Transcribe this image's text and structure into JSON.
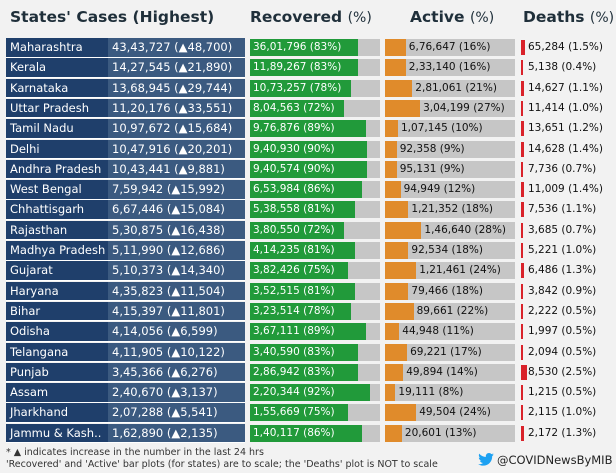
{
  "headers": {
    "states_cases": "States' Cases (Highest)",
    "recovered": "Recovered",
    "recovered_unit": "(%)",
    "active": "Active",
    "active_unit": "(%)",
    "deaths": "Deaths",
    "deaths_unit": "(%)"
  },
  "colors": {
    "state_bg": "#1f3f6b",
    "cases_bg": "#3b5a80",
    "recovered": "#219a3a",
    "active": "#e08b2b",
    "deaths": "#d9222a",
    "track": "#c6c6c6"
  },
  "chart_data": {
    "type": "table",
    "title": "States' Cases (Highest)",
    "columns": [
      "State",
      "Cases",
      "Recovered (%)",
      "Active (%)",
      "Deaths (%)"
    ],
    "rows": [
      {
        "state": "Maharashtra",
        "cases": "43,43,727 (▲48,700)",
        "recovered": "36,01,796 (83%)",
        "recovered_pct": 83,
        "active": "6,76,647 (16%)",
        "active_pct": 16,
        "deaths": "65,284 (1.5%)"
      },
      {
        "state": "Kerala",
        "cases": "14,27,545 (▲21,890)",
        "recovered": "11,89,267 (83%)",
        "recovered_pct": 83,
        "active": "2,33,140 (16%)",
        "active_pct": 16,
        "deaths": "5,138 (0.4%)"
      },
      {
        "state": "Karnataka",
        "cases": "13,68,945 (▲29,744)",
        "recovered": "10,73,257 (78%)",
        "recovered_pct": 78,
        "active": "2,81,061 (21%)",
        "active_pct": 21,
        "deaths": "14,627 (1.1%)"
      },
      {
        "state": "Uttar Pradesh",
        "cases": "11,20,176 (▲33,551)",
        "recovered": "8,04,563 (72%)",
        "recovered_pct": 72,
        "active": "3,04,199 (27%)",
        "active_pct": 27,
        "deaths": "11,414 (1.0%)"
      },
      {
        "state": "Tamil Nadu",
        "cases": "10,97,672 (▲15,684)",
        "recovered": "9,76,876 (89%)",
        "recovered_pct": 89,
        "active": "1,07,145 (10%)",
        "active_pct": 10,
        "deaths": "13,651 (1.2%)"
      },
      {
        "state": "Delhi",
        "cases": "10,47,916 (▲20,201)",
        "recovered": "9,40,930 (90%)",
        "recovered_pct": 90,
        "active": "92,358 (9%)",
        "active_pct": 9,
        "deaths": "14,628 (1.4%)"
      },
      {
        "state": "Andhra Pradesh",
        "cases": "10,43,441 (▲9,881)",
        "recovered": "9,40,574 (90%)",
        "recovered_pct": 90,
        "active": "95,131 (9%)",
        "active_pct": 9,
        "deaths": "7,736 (0.7%)"
      },
      {
        "state": "West Bengal",
        "cases": "7,59,942 (▲15,992)",
        "recovered": "6,53,984 (86%)",
        "recovered_pct": 86,
        "active": "94,949 (12%)",
        "active_pct": 12,
        "deaths": "11,009 (1.4%)"
      },
      {
        "state": "Chhattisgarh",
        "cases": "6,67,446 (▲15,084)",
        "recovered": "5,38,558 (81%)",
        "recovered_pct": 81,
        "active": "1,21,352 (18%)",
        "active_pct": 18,
        "deaths": "7,536 (1.1%)"
      },
      {
        "state": "Rajasthan",
        "cases": "5,30,875 (▲16,438)",
        "recovered": "3,80,550 (72%)",
        "recovered_pct": 72,
        "active": "1,46,640 (28%)",
        "active_pct": 28,
        "deaths": "3,685 (0.7%)"
      },
      {
        "state": "Madhya Pradesh",
        "cases": "5,11,990 (▲12,686)",
        "recovered": "4,14,235 (81%)",
        "recovered_pct": 81,
        "active": "92,534 (18%)",
        "active_pct": 18,
        "deaths": "5,221 (1.0%)"
      },
      {
        "state": "Gujarat",
        "cases": "5,10,373 (▲14,340)",
        "recovered": "3,82,426 (75%)",
        "recovered_pct": 75,
        "active": "1,21,461 (24%)",
        "active_pct": 24,
        "deaths": "6,486 (1.3%)"
      },
      {
        "state": "Haryana",
        "cases": "4,35,823 (▲11,504)",
        "recovered": "3,52,515 (81%)",
        "recovered_pct": 81,
        "active": "79,466 (18%)",
        "active_pct": 18,
        "deaths": "3,842 (0.9%)"
      },
      {
        "state": "Bihar",
        "cases": "4,15,397 (▲11,801)",
        "recovered": "3,23,514 (78%)",
        "recovered_pct": 78,
        "active": "89,661 (22%)",
        "active_pct": 22,
        "deaths": "2,222 (0.5%)"
      },
      {
        "state": "Odisha",
        "cases": "4,14,056 (▲6,599)",
        "recovered": "3,67,111 (89%)",
        "recovered_pct": 89,
        "active": "44,948 (11%)",
        "active_pct": 11,
        "deaths": "1,997 (0.5%)"
      },
      {
        "state": "Telangana",
        "cases": "4,11,905 (▲10,122)",
        "recovered": "3,40,590 (83%)",
        "recovered_pct": 83,
        "active": "69,221 (17%)",
        "active_pct": 17,
        "deaths": "2,094 (0.5%)"
      },
      {
        "state": "Punjab",
        "cases": "3,45,366 (▲6,276)",
        "recovered": "2,86,942 (83%)",
        "recovered_pct": 83,
        "active": "49,894 (14%)",
        "active_pct": 14,
        "deaths": "8,530 (2.5%)"
      },
      {
        "state": "Assam",
        "cases": "2,40,670 (▲3,137)",
        "recovered": "2,20,344 (92%)",
        "recovered_pct": 92,
        "active": "19,111 (8%)",
        "active_pct": 8,
        "deaths": "1,215 (0.5%)"
      },
      {
        "state": "Jharkhand",
        "cases": "2,07,288 (▲5,541)",
        "recovered": "1,55,669 (75%)",
        "recovered_pct": 75,
        "active": "49,504 (24%)",
        "active_pct": 24,
        "deaths": "2,115 (1.0%)"
      },
      {
        "state": "Jammu & Kash..",
        "cases": "1,62,890 (▲2,135)",
        "recovered": "1,40,117 (86%)",
        "recovered_pct": 86,
        "active": "20,601 (13%)",
        "active_pct": 13,
        "deaths": "2,172 (1.3%)"
      }
    ]
  },
  "footer": {
    "note1": "* ▲ indicates increase in the number in the last 24 hrs",
    "note2": "'Recovered' and 'Active' bar plots (for states) are to scale; the 'Deaths' plot is NOT to scale",
    "twitter_icon": "twitter-bird-icon",
    "handle": "@COVIDNewsByMIB"
  }
}
